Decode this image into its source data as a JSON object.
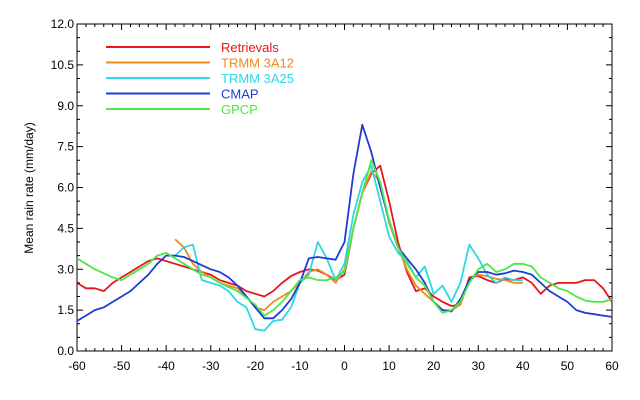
{
  "chart_data": {
    "type": "line",
    "title": "",
    "xlabel": "",
    "ylabel": "Mean rain rate (mm/day)",
    "xlim": [
      -60,
      60
    ],
    "ylim": [
      0.0,
      12.0
    ],
    "xticks": [
      -60,
      -50,
      -40,
      -30,
      -20,
      -10,
      0,
      10,
      20,
      30,
      40,
      50,
      60
    ],
    "xtick_labels": [
      "-60",
      "-50",
      "-40",
      "-30",
      "-20",
      "-10",
      "0",
      "10",
      "20",
      "30",
      "40",
      "50",
      "60"
    ],
    "yticks": [
      0.0,
      1.5,
      3.0,
      4.5,
      6.0,
      7.5,
      9.0,
      10.5,
      12.0
    ],
    "ytick_labels": [
      "0.0",
      "1.5",
      "3.0",
      "4.5",
      "6.0",
      "7.5",
      "9.0",
      "10.5",
      "12.0"
    ],
    "grid": false,
    "legend_position": "top-left",
    "series": [
      {
        "name": "Retrievals",
        "color": "#e8141e",
        "x": [
          -60,
          -58,
          -56,
          -54,
          -52,
          -50,
          -48,
          -46,
          -44,
          -42,
          -40,
          -38,
          -36,
          -34,
          -32,
          -30,
          -28,
          -26,
          -24,
          -22,
          -20,
          -18,
          -16,
          -14,
          -12,
          -10,
          -8,
          -6,
          -4,
          -2,
          0,
          2,
          4,
          6,
          8,
          10,
          12,
          14,
          16,
          18,
          20,
          22,
          24,
          26,
          28,
          30,
          32,
          34,
          36,
          38,
          40,
          42,
          44,
          46,
          48,
          50,
          52,
          54,
          56,
          58,
          60
        ],
        "values": [
          2.5,
          2.3,
          2.3,
          2.2,
          2.5,
          2.7,
          2.9,
          3.1,
          3.3,
          3.4,
          3.3,
          3.2,
          3.1,
          3.0,
          2.9,
          2.8,
          2.6,
          2.5,
          2.4,
          2.2,
          2.1,
          2.0,
          2.2,
          2.5,
          2.75,
          2.9,
          3.0,
          2.95,
          2.8,
          2.6,
          2.8,
          4.5,
          5.8,
          6.5,
          6.8,
          5.5,
          4.0,
          2.9,
          2.2,
          2.3,
          2.0,
          1.8,
          1.65,
          1.7,
          2.7,
          2.75,
          2.6,
          2.5,
          2.65,
          2.6,
          2.7,
          2.5,
          2.1,
          2.4,
          2.5,
          2.5,
          2.5,
          2.6,
          2.6,
          2.3,
          1.8
        ]
      },
      {
        "name": "TRMM 3A12",
        "color": "#f08a1c",
        "x": [
          -38,
          -36,
          -34,
          -32,
          -30,
          -28,
          -26,
          -24,
          -22,
          -20,
          -18,
          -16,
          -14,
          -12,
          -10,
          -8,
          -6,
          -4,
          -2,
          0,
          2,
          4,
          6,
          8,
          10,
          12,
          14,
          16,
          18,
          20,
          22,
          24,
          26,
          28,
          30,
          32,
          34,
          36,
          38,
          40
        ],
        "values": [
          4.1,
          3.8,
          3.2,
          2.9,
          2.7,
          2.5,
          2.4,
          2.3,
          2.0,
          1.6,
          1.5,
          1.8,
          2.0,
          2.2,
          2.5,
          2.9,
          3.0,
          2.8,
          2.5,
          3.0,
          4.5,
          5.8,
          6.6,
          6.2,
          4.7,
          3.8,
          3.0,
          2.4,
          2.1,
          1.8,
          1.5,
          1.5,
          1.7,
          2.6,
          2.8,
          2.75,
          2.65,
          2.6,
          2.5,
          2.5
        ]
      },
      {
        "name": "TRMM 3A25",
        "color": "#2ed6e6",
        "x": [
          -40,
          -38,
          -36,
          -34,
          -32,
          -30,
          -28,
          -26,
          -24,
          -22,
          -20,
          -18,
          -16,
          -14,
          -12,
          -10,
          -8,
          -6,
          -4,
          -2,
          0,
          2,
          4,
          6,
          8,
          10,
          12,
          14,
          16,
          18,
          20,
          22,
          24,
          26,
          28,
          30,
          32,
          34,
          36,
          38,
          40
        ],
        "values": [
          3.5,
          3.5,
          3.8,
          3.9,
          2.6,
          2.5,
          2.4,
          2.2,
          1.8,
          1.6,
          0.8,
          0.75,
          1.1,
          1.15,
          1.6,
          2.5,
          2.8,
          4.0,
          3.4,
          2.6,
          3.2,
          5.0,
          6.2,
          6.8,
          5.5,
          4.2,
          3.6,
          3.3,
          2.7,
          3.1,
          2.1,
          2.4,
          1.8,
          2.5,
          3.9,
          3.4,
          2.8,
          2.5,
          2.7,
          2.6,
          2.6
        ]
      },
      {
        "name": "CMAP",
        "color": "#1e3cd2",
        "x": [
          -60,
          -58,
          -56,
          -54,
          -52,
          -50,
          -48,
          -46,
          -44,
          -42,
          -40,
          -38,
          -36,
          -34,
          -32,
          -30,
          -28,
          -26,
          -24,
          -22,
          -20,
          -18,
          -16,
          -14,
          -12,
          -10,
          -8,
          -6,
          -4,
          -2,
          0,
          2,
          4,
          6,
          8,
          10,
          12,
          14,
          16,
          18,
          20,
          22,
          24,
          26,
          28,
          30,
          32,
          34,
          36,
          38,
          40,
          42,
          44,
          46,
          48,
          50,
          52,
          54,
          56,
          58,
          60
        ],
        "values": [
          1.1,
          1.3,
          1.5,
          1.6,
          1.8,
          2.0,
          2.2,
          2.5,
          2.8,
          3.2,
          3.5,
          3.5,
          3.45,
          3.3,
          3.15,
          3.0,
          2.9,
          2.7,
          2.4,
          2.0,
          1.6,
          1.2,
          1.2,
          1.5,
          1.9,
          2.5,
          3.4,
          3.45,
          3.4,
          3.35,
          4.0,
          6.5,
          8.3,
          7.3,
          6.0,
          4.8,
          3.8,
          3.4,
          3.0,
          2.5,
          1.8,
          1.5,
          1.45,
          1.9,
          2.6,
          2.9,
          2.9,
          2.8,
          2.85,
          2.95,
          2.9,
          2.8,
          2.5,
          2.2,
          2.0,
          1.8,
          1.5,
          1.4,
          1.35,
          1.3,
          1.25
        ]
      },
      {
        "name": "GPCP",
        "color": "#4ee64a",
        "x": [
          -60,
          -58,
          -56,
          -54,
          -52,
          -50,
          -48,
          -46,
          -44,
          -42,
          -40,
          -38,
          -36,
          -34,
          -32,
          -30,
          -28,
          -26,
          -24,
          -22,
          -20,
          -18,
          -16,
          -14,
          -12,
          -10,
          -8,
          -6,
          -4,
          -2,
          0,
          2,
          4,
          6,
          8,
          10,
          12,
          14,
          16,
          18,
          20,
          22,
          24,
          26,
          28,
          30,
          32,
          34,
          36,
          38,
          40,
          42,
          44,
          46,
          48,
          50,
          52,
          54,
          56,
          58,
          60
        ],
        "values": [
          3.4,
          3.2,
          3.0,
          2.85,
          2.7,
          2.6,
          2.8,
          3.0,
          3.2,
          3.5,
          3.6,
          3.4,
          3.2,
          3.0,
          2.8,
          2.7,
          2.5,
          2.35,
          2.2,
          1.95,
          1.7,
          1.3,
          1.5,
          1.8,
          2.2,
          2.6,
          2.7,
          2.6,
          2.6,
          2.7,
          2.9,
          4.5,
          5.8,
          7.0,
          6.2,
          4.8,
          3.8,
          3.2,
          2.7,
          2.4,
          1.8,
          1.4,
          1.5,
          1.8,
          2.5,
          3.0,
          3.2,
          2.9,
          3.0,
          3.2,
          3.2,
          3.1,
          2.7,
          2.5,
          2.3,
          2.2,
          2.0,
          1.85,
          1.8,
          1.8,
          1.9
        ]
      }
    ]
  }
}
